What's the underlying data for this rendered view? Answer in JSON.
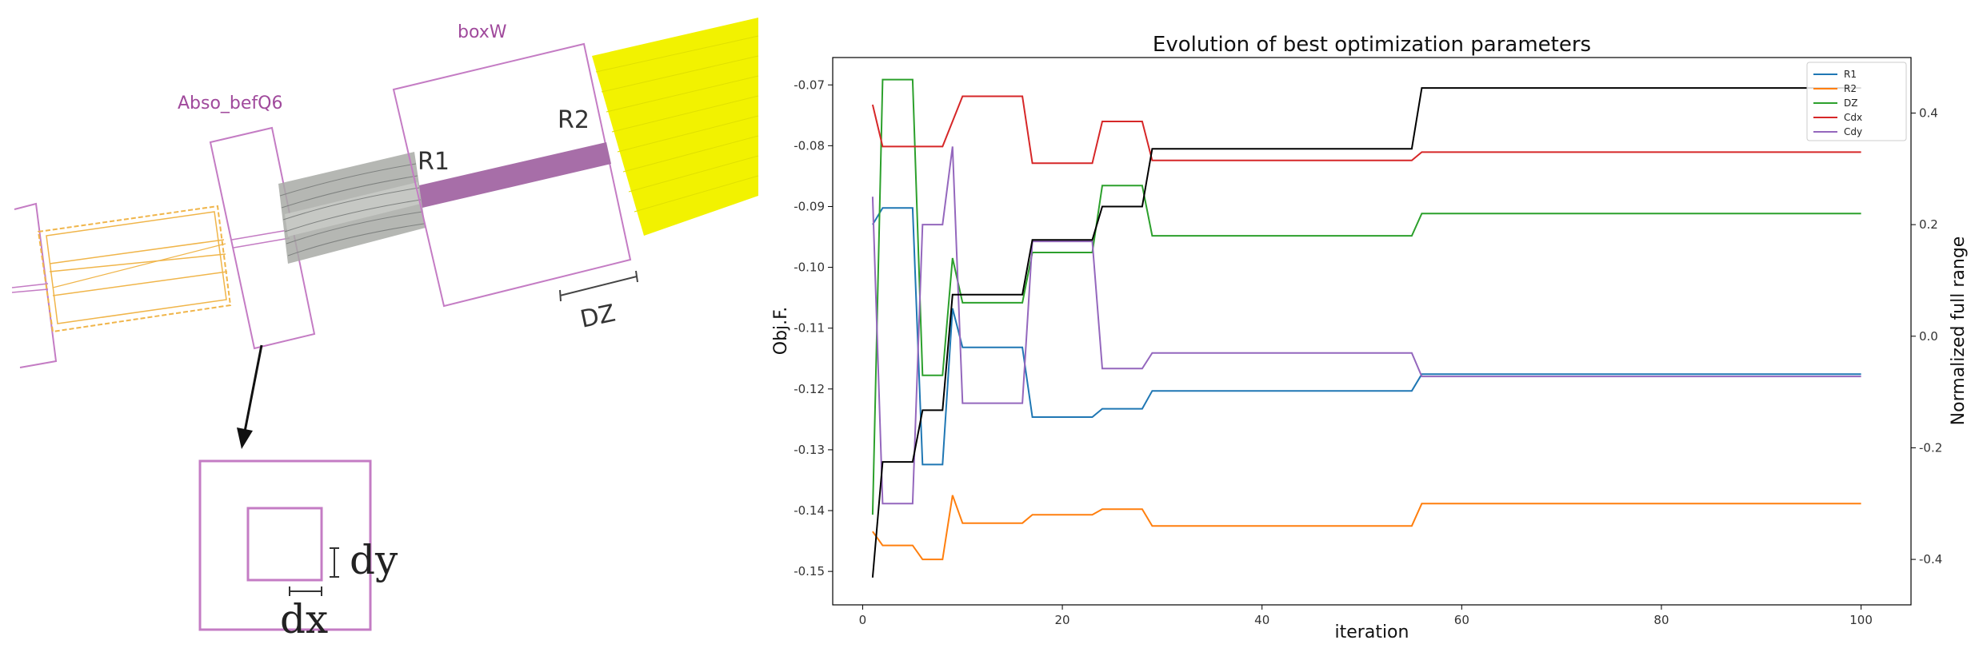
{
  "diagram": {
    "labels": {
      "boxW": "boxW",
      "abso": "Abso_befQ6",
      "r1": "R1",
      "r2": "R2",
      "dz": "DZ",
      "dy": "dy",
      "dx": "dx"
    },
    "colors": {
      "magenta": "#c47cc4",
      "orange": "#f0b54a",
      "gray": "#a8aaa6",
      "purple_bar": "#a76ea8",
      "yellow": "#f2f200"
    }
  },
  "chart_data": {
    "type": "line",
    "title": "Evolution of best optimization parameters",
    "xlabel": "iteration",
    "ylabel": "Obj.F.",
    "y2label": "Normalized full range",
    "xlim": [
      -3,
      105
    ],
    "ylim": [
      -0.1555,
      -0.0655
    ],
    "y2lim": [
      -0.4815,
      0.4995
    ],
    "xticks": [
      0,
      20,
      40,
      60,
      80,
      100
    ],
    "yticks": [
      -0.07,
      -0.08,
      -0.09,
      -0.1,
      -0.11,
      -0.12,
      -0.13,
      -0.14,
      -0.15
    ],
    "ytick_labels": [
      "-0.07",
      "-0.08",
      "-0.09",
      "-0.10",
      "-0.11",
      "-0.12",
      "-0.13",
      "-0.14",
      "-0.15"
    ],
    "y2ticks": [
      0.4,
      0.2,
      0.0,
      -0.2,
      -0.4
    ],
    "y2tick_labels": [
      "0.4",
      "0.2",
      "0.0",
      "-0.2",
      "-0.4"
    ],
    "legend_position": "top-right",
    "objective": {
      "name": "Obj.F.",
      "color": "#000000",
      "x": [
        1,
        2,
        5,
        6,
        8,
        9,
        16,
        17,
        23,
        24,
        28,
        29,
        55,
        56,
        100
      ],
      "y": [
        -0.151,
        -0.132,
        -0.132,
        -0.1235,
        -0.1235,
        -0.1045,
        -0.1045,
        -0.0955,
        -0.0955,
        -0.09,
        -0.09,
        -0.0805,
        -0.0805,
        -0.0705,
        -0.0705
      ]
    },
    "series": [
      {
        "name": "R1",
        "color": "#1f77b4",
        "x": [
          1,
          2,
          5,
          6,
          8,
          9,
          10,
          16,
          17,
          23,
          24,
          28,
          29,
          55,
          56,
          100
        ],
        "y": [
          0.2,
          0.23,
          0.23,
          -0.23,
          -0.23,
          0.05,
          -0.02,
          -0.02,
          -0.145,
          -0.145,
          -0.13,
          -0.13,
          -0.098,
          -0.098,
          -0.068,
          -0.068
        ]
      },
      {
        "name": "R2",
        "color": "#ff7f0e",
        "x": [
          1,
          2,
          5,
          6,
          8,
          9,
          10,
          16,
          17,
          23,
          24,
          28,
          29,
          55,
          56,
          100
        ],
        "y": [
          -0.35,
          -0.375,
          -0.375,
          -0.4,
          -0.4,
          -0.285,
          -0.335,
          -0.335,
          -0.32,
          -0.32,
          -0.31,
          -0.31,
          -0.34,
          -0.34,
          -0.3,
          -0.3
        ]
      },
      {
        "name": "DZ",
        "color": "#2ca02c",
        "x": [
          1,
          2,
          5,
          6,
          8,
          9,
          10,
          16,
          17,
          23,
          24,
          28,
          29,
          55,
          56,
          100
        ],
        "y": [
          -0.32,
          0.46,
          0.46,
          -0.07,
          -0.07,
          0.14,
          0.06,
          0.06,
          0.15,
          0.15,
          0.27,
          0.27,
          0.18,
          0.18,
          0.22,
          0.22
        ]
      },
      {
        "name": "Cdx",
        "color": "#d62728",
        "x": [
          1,
          2,
          5,
          6,
          8,
          10,
          16,
          17,
          23,
          24,
          28,
          29,
          55,
          56,
          100
        ],
        "y": [
          0.415,
          0.34,
          0.34,
          0.34,
          0.34,
          0.43,
          0.43,
          0.31,
          0.31,
          0.385,
          0.385,
          0.315,
          0.315,
          0.33,
          0.33
        ]
      },
      {
        "name": "Cdy",
        "color": "#9467bd",
        "x": [
          1,
          2,
          5,
          6,
          8,
          9,
          10,
          16,
          17,
          23,
          24,
          28,
          29,
          55,
          56,
          100
        ],
        "y": [
          0.25,
          -0.3,
          -0.3,
          0.2,
          0.2,
          0.34,
          -0.12,
          -0.12,
          0.17,
          0.17,
          -0.058,
          -0.058,
          -0.03,
          -0.03,
          -0.072,
          -0.072
        ]
      }
    ]
  }
}
